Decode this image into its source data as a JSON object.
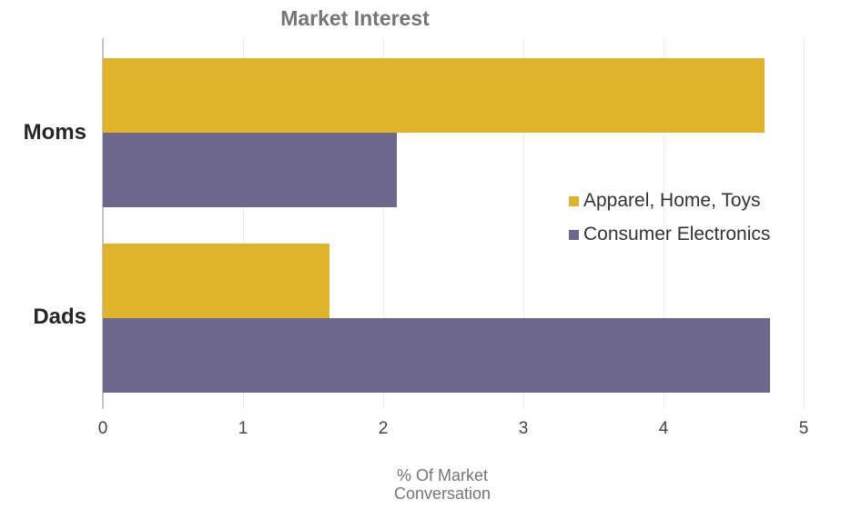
{
  "chart_data": {
    "type": "bar",
    "orientation": "horizontal",
    "title": "Market Interest",
    "categories": [
      "Moms",
      "Dads"
    ],
    "series": [
      {
        "name": "Apparel, Home, Toys",
        "color": "#DFB42B",
        "values": [
          4.72,
          1.62
        ]
      },
      {
        "name": "Consumer Electronics",
        "color": "#6C678B",
        "values": [
          2.1,
          4.76
        ]
      }
    ],
    "xlabel": "% Of Market Conversation",
    "xlim": [
      0,
      5
    ],
    "xticks": [
      0,
      1,
      2,
      3,
      4,
      5
    ],
    "grid": true,
    "legend_position": "middle-right",
    "colors": {
      "background": "#ffffff",
      "title_text": "#757575",
      "category_label_text": "#262626",
      "tick_label_text": "#444444",
      "axis_title_text": "#757575",
      "legend_text": "#333333",
      "gridline": "#ececec",
      "zero_line": "#c5c5c5"
    }
  }
}
